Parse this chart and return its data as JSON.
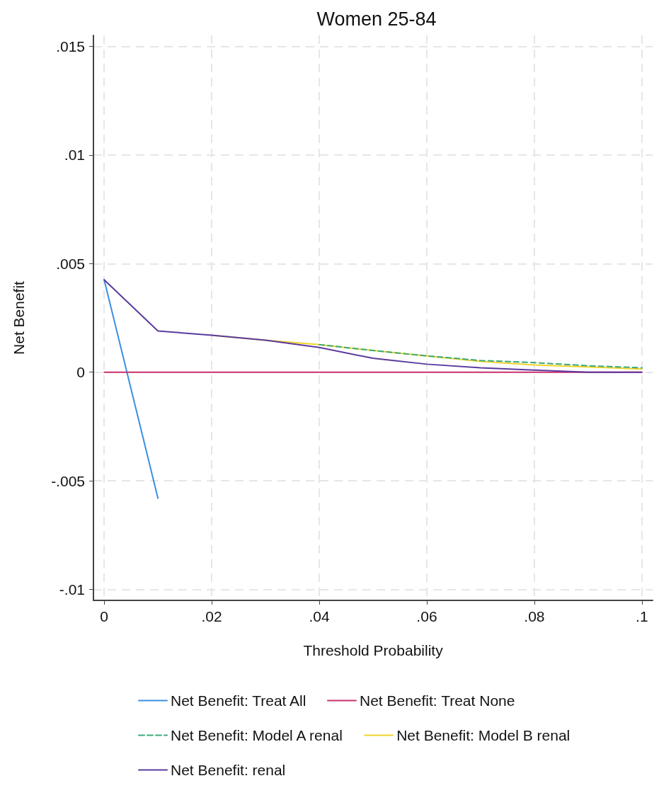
{
  "chart_data": {
    "type": "line",
    "title": "Women 25-84",
    "xlabel": "Threshold Probability",
    "ylabel": "Net Benefit",
    "x": [
      0,
      0.01,
      0.02,
      0.03,
      0.04,
      0.05,
      0.06,
      0.07,
      0.08,
      0.09,
      0.1
    ],
    "series": [
      {
        "name": "Net Benefit: Treat All",
        "color": "#3a8fe0",
        "x": [
          0,
          0.01
        ],
        "values": [
          0.00425,
          -0.0058
        ]
      },
      {
        "name": "Net Benefit: Treat None",
        "color": "#c9316e",
        "values": [
          0,
          0,
          0,
          0,
          0,
          0,
          0,
          0,
          0,
          0,
          0
        ]
      },
      {
        "name": "Net Benefit: Model A renal",
        "color": "#3aaa7a",
        "line_style": "dashed",
        "values": [
          null,
          null,
          null,
          null,
          0.00127,
          0.001,
          0.00075,
          0.00054,
          0.00044,
          0.0003,
          0.0002
        ]
      },
      {
        "name": "Net Benefit: Model B renal",
        "color": "#f0d32a",
        "values": [
          null,
          null,
          0.0017,
          0.00147,
          0.00127,
          0.001,
          0.00075,
          0.0005,
          0.00033,
          0.00024,
          0.00015
        ]
      },
      {
        "name": "Net Benefit: renal",
        "color": "#5b3a9e",
        "values": [
          0.00425,
          0.0019,
          0.0017,
          0.00147,
          0.00114,
          0.00064,
          0.00037,
          0.0002,
          0.0001,
          0,
          0
        ]
      }
    ],
    "xlim": [
      -0.002,
      0.102
    ],
    "ylim": [
      -0.0105,
      0.0155
    ],
    "xticks": [
      {
        "value": 0,
        "label": "0"
      },
      {
        "value": 0.02,
        "label": ".02"
      },
      {
        "value": 0.04,
        "label": ".04"
      },
      {
        "value": 0.06,
        "label": ".06"
      },
      {
        "value": 0.08,
        "label": ".08"
      },
      {
        "value": 0.1,
        "label": ".1"
      }
    ],
    "yticks": [
      {
        "value": -0.01,
        "label": "-.01"
      },
      {
        "value": -0.005,
        "label": "-.005"
      },
      {
        "value": 0,
        "label": "0"
      },
      {
        "value": 0.005,
        "label": ".005"
      },
      {
        "value": 0.01,
        "label": ".01"
      },
      {
        "value": 0.015,
        "label": ".015"
      }
    ],
    "grid": true,
    "legend": "bottom",
    "marker": "none",
    "line_style": "solid"
  }
}
